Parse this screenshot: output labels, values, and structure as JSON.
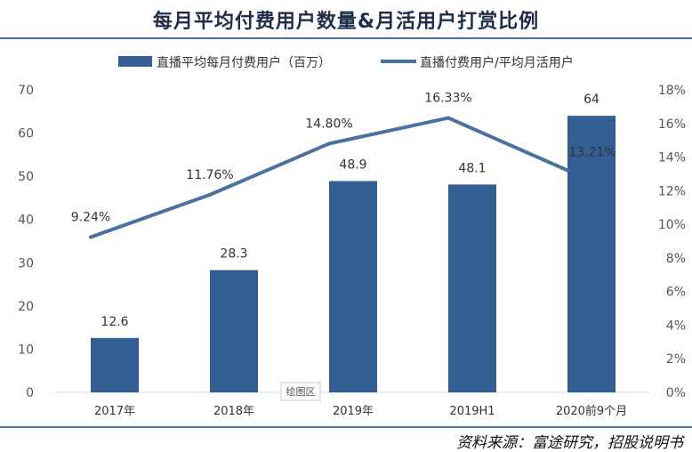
{
  "title": "每月平均付费用户数量&月活用户打赏比例",
  "source": "资料来源：富途研究，招股说明书",
  "plot_area_tag": "绘图区",
  "colors": {
    "bar": "#345f94",
    "line": "#4a71a3",
    "rule": "#4f72a8"
  },
  "chart_data": {
    "type": "bar+line",
    "categories": [
      "2017年",
      "2018年",
      "2019年",
      "2019H1",
      "2020前9个月"
    ],
    "series": [
      {
        "name": "直播平均每月付费用户（百万）",
        "type": "bar",
        "axis": "left",
        "values": [
          12.6,
          28.3,
          48.9,
          48.1,
          64
        ],
        "labels": [
          "12.6",
          "28.3",
          "48.9",
          "48.1",
          "64"
        ]
      },
      {
        "name": "直播付费用户/平均月活用户",
        "type": "line",
        "axis": "right",
        "values": [
          9.24,
          11.76,
          14.8,
          16.33,
          13.21
        ],
        "labels": [
          "9.24%",
          "11.76%",
          "14.80%",
          "16.33%",
          "13.21%"
        ]
      }
    ],
    "left_axis": {
      "min": 0,
      "max": 70,
      "ticks": [
        "0",
        "10",
        "20",
        "30",
        "40",
        "50",
        "60",
        "70"
      ]
    },
    "right_axis": {
      "min": 0,
      "max": 18,
      "ticks": [
        "0%",
        "2%",
        "4%",
        "6%",
        "8%",
        "10%",
        "12%",
        "14%",
        "16%",
        "18%"
      ]
    },
    "legend_position": "top"
  }
}
